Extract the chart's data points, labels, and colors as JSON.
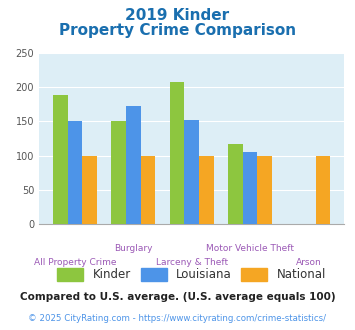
{
  "title_line1": "2019 Kinder",
  "title_line2": "Property Crime Comparison",
  "title_color": "#1a6faf",
  "categories": [
    "All Property Crime",
    "Burglary",
    "Larceny & Theft",
    "Motor Vehicle Theft",
    "Arson"
  ],
  "cat_line1": [
    "",
    "Burglary",
    "",
    "Motor Vehicle Theft",
    ""
  ],
  "cat_line2": [
    "All Property Crime",
    "",
    "Larceny & Theft",
    "",
    "Arson"
  ],
  "kinder": [
    188,
    150,
    207,
    117,
    0
  ],
  "louisiana": [
    150,
    172,
    152,
    105,
    0
  ],
  "national": [
    100,
    100,
    100,
    100,
    100
  ],
  "kinder_color": "#8dc63f",
  "louisiana_color": "#4d94e8",
  "national_color": "#f5a623",
  "plot_bg": "#ddeef6",
  "ylim": [
    0,
    250
  ],
  "yticks": [
    0,
    50,
    100,
    150,
    200,
    250
  ],
  "legend_labels": [
    "Kinder",
    "Louisiana",
    "National"
  ],
  "footnote1": "Compared to U.S. average. (U.S. average equals 100)",
  "footnote2": "© 2025 CityRating.com - https://www.cityrating.com/crime-statistics/",
  "footnote2_color": "#4d94e8",
  "xticklabel_color": "#9b59b6"
}
